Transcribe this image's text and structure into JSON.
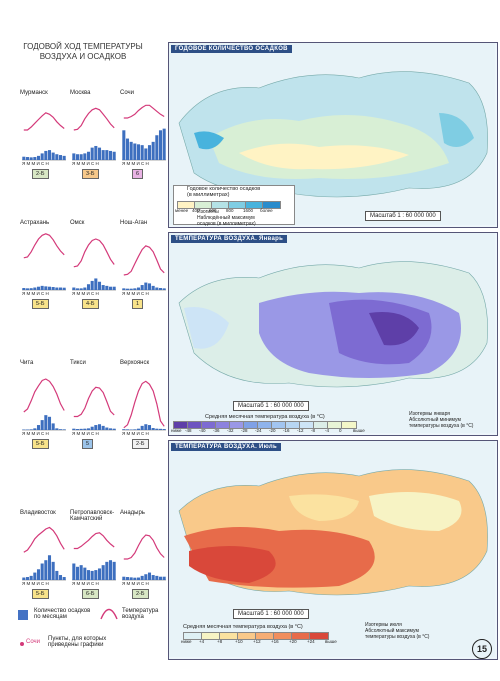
{
  "left_title": "ГОДОВОЙ ХОД ТЕМПЕРАТУРЫ\nВОЗДУХА И ОСАДКОВ",
  "cities": [
    {
      "name": "Мурманск",
      "badge": "2-Б",
      "badge_color": "#d8e7c4",
      "precip": [
        20,
        18,
        16,
        18,
        25,
        40,
        55,
        60,
        45,
        35,
        30,
        25
      ],
      "temp": [
        -10,
        -10,
        -6,
        -1,
        4,
        9,
        13,
        11,
        7,
        1,
        -4,
        -8
      ]
    },
    {
      "name": "Москва",
      "badge": "3-Б",
      "badge_color": "#f6c88a",
      "precip": [
        40,
        35,
        35,
        40,
        50,
        75,
        85,
        75,
        60,
        60,
        55,
        50
      ],
      "temp": [
        -10,
        -9,
        -4,
        5,
        12,
        17,
        19,
        17,
        11,
        5,
        -2,
        -7
      ]
    },
    {
      "name": "Сочи",
      "badge": "6",
      "badge_color": "#e9b3e4",
      "precip": [
        180,
        130,
        110,
        100,
        95,
        90,
        70,
        90,
        110,
        150,
        180,
        190
      ],
      "temp": [
        6,
        6,
        8,
        11,
        16,
        20,
        23,
        23,
        19,
        15,
        11,
        8
      ]
    },
    {
      "name": "Астрахань",
      "badge": "5-Б",
      "badge_color": "#f8e38a",
      "precip": [
        12,
        10,
        11,
        15,
        20,
        25,
        22,
        20,
        18,
        15,
        15,
        14
      ],
      "temp": [
        -7,
        -6,
        1,
        10,
        18,
        23,
        25,
        23,
        17,
        9,
        2,
        -3
      ]
    },
    {
      "name": "Омск",
      "badge": "4-Б",
      "badge_color": "#f8e38a",
      "precip": [
        15,
        10,
        10,
        15,
        35,
        55,
        70,
        50,
        30,
        25,
        20,
        20
      ],
      "temp": [
        -19,
        -18,
        -11,
        1,
        10,
        16,
        18,
        16,
        10,
        1,
        -9,
        -16
      ]
    },
    {
      "name": "Нош-Аган",
      "badge": "1",
      "badge_color": "#f8e38a",
      "precip": [
        10,
        8,
        8,
        10,
        15,
        30,
        45,
        40,
        25,
        15,
        12,
        10
      ],
      "temp": [
        -30,
        -29,
        -25,
        -15,
        -5,
        4,
        9,
        7,
        1,
        -10,
        -22,
        -27
      ]
    },
    {
      "name": "Чита",
      "badge": "5-Б",
      "badge_color": "#f8e38a",
      "precip": [
        3,
        3,
        4,
        10,
        30,
        60,
        90,
        80,
        40,
        10,
        5,
        4
      ],
      "temp": [
        -26,
        -22,
        -11,
        1,
        9,
        16,
        18,
        15,
        8,
        -2,
        -15,
        -24
      ]
    },
    {
      "name": "Тикси",
      "badge": "5",
      "badge_color": "#9cc4ea",
      "precip": [
        8,
        6,
        7,
        8,
        10,
        20,
        30,
        35,
        25,
        15,
        10,
        8
      ],
      "temp": [
        -32,
        -32,
        -29,
        -21,
        -8,
        2,
        7,
        6,
        0,
        -12,
        -25,
        -30
      ]
    },
    {
      "name": "Верхоянск",
      "badge": "2-Б",
      "badge_color": "#f2f2f2",
      "precip": [
        5,
        4,
        3,
        4,
        8,
        25,
        35,
        30,
        12,
        8,
        7,
        6
      ],
      "temp": [
        -47,
        -43,
        -30,
        -13,
        2,
        12,
        15,
        11,
        2,
        -15,
        -38,
        -45
      ]
    },
    {
      "name": "Владивосток",
      "badge": "5-Б",
      "badge_color": "#f8e38a",
      "precip": [
        15,
        18,
        25,
        45,
        65,
        100,
        120,
        150,
        110,
        55,
        30,
        18
      ],
      "temp": [
        -13,
        -10,
        -3,
        5,
        10,
        14,
        18,
        20,
        16,
        9,
        -1,
        -9
      ]
    },
    {
      "name": "Петропавловск-\nКамчатский",
      "badge": "6-Б",
      "badge_color": "#d8e7c4",
      "precip": [
        100,
        80,
        90,
        75,
        60,
        55,
        60,
        70,
        90,
        110,
        120,
        110
      ],
      "temp": [
        -8,
        -8,
        -5,
        -1,
        3,
        8,
        12,
        13,
        9,
        3,
        -2,
        -6
      ]
    },
    {
      "name": "Анадырь",
      "badge": "2-Б",
      "badge_color": "#d8e7c4",
      "precip": [
        20,
        18,
        16,
        14,
        15,
        25,
        35,
        45,
        30,
        25,
        20,
        20
      ],
      "temp": [
        -22,
        -22,
        -20,
        -14,
        -4,
        5,
        10,
        9,
        3,
        -7,
        -15,
        -20
      ]
    }
  ],
  "month_letters": "Я М М И С Н",
  "legend": {
    "precip_label": "Количество осадков\nпо месяцам",
    "temp_label": "Температура\nвоздуха",
    "points_label": "Пункты, для которых\nприведены графики",
    "point_example": "Сочи"
  },
  "maps": [
    {
      "title": "ГОДОВОЕ КОЛИЧЕСТВО ОСАДКОВ",
      "scale": "Масштаб 1 : 60 000 000",
      "legend_title": "Годовое количество осадков\n(в миллиметрах)",
      "legend_values": [
        "менее",
        "400",
        "600",
        "800",
        "1600",
        "более"
      ],
      "legend_extra": "Изогиеты\nНаблюдённый максимум\nосадков (в миллиметрах)",
      "palette": [
        "#fff3c4",
        "#d8efd5",
        "#b4e2e6",
        "#7fcde3",
        "#48b3dd",
        "#2a8ccc"
      ]
    },
    {
      "title": "ТЕМПЕРАТУРА ВОЗДУХА. Январь",
      "scale": "Масштаб 1 : 60 000 000",
      "legend_title": "Средняя месячная температура воздуха (в °С)",
      "legend_values": [
        "ниже",
        "-48",
        "-40",
        "-36",
        "-32",
        "-28",
        "-24",
        "-20",
        "-16",
        "-12",
        "-8",
        "-4",
        "0",
        "выше"
      ],
      "legend_extra": "Изотермы января\nАбсолютный минимум\nтемпературы воздуха (в °С)",
      "palette": [
        "#5e3fa8",
        "#6e55c0",
        "#7d6bd2",
        "#8c82de",
        "#9a98e6",
        "#7fa1e6",
        "#8fb4ec",
        "#a2c5f0",
        "#b7d6f3",
        "#cde4f6",
        "#dceee8",
        "#e8f4d6",
        "#f4f7c8"
      ]
    },
    {
      "title": "ТЕМПЕРАТУРА ВОЗДУХА. Июль",
      "scale": "Масштаб 1 : 60 000 000",
      "legend_title": "Средняя месячная температура воздуха (в °С)",
      "legend_values": [
        "ниже",
        "+4",
        "+8",
        "+10",
        "+12",
        "+16",
        "+20",
        "+24",
        "выше"
      ],
      "legend_extra": "Изотермы июля\nАбсолютный максимум\nтемпературы воздуха (в °С)",
      "palette": [
        "#dff0f4",
        "#f7f3c4",
        "#fbe2a0",
        "#f9c98a",
        "#f6ad74",
        "#f08e5e",
        "#e76b4a",
        "#d9483a"
      ]
    }
  ],
  "page_number": "15"
}
